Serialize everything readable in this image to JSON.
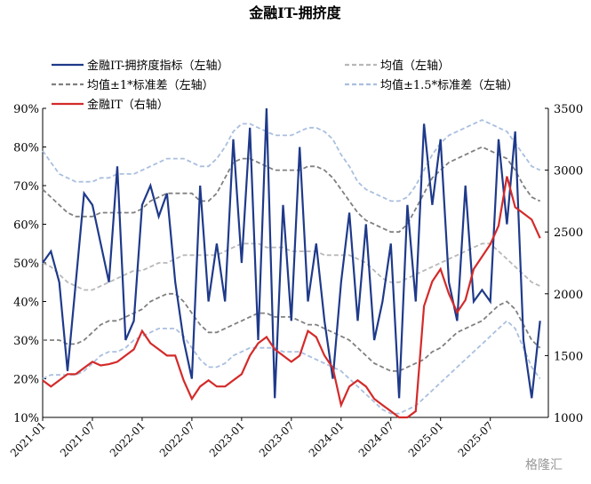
{
  "chart_data": {
    "type": "line",
    "title": "金融IT-拥挤度",
    "watermark": "格隆汇",
    "categories": [
      "2021-01",
      null,
      null,
      null,
      null,
      null,
      "2021-07",
      null,
      null,
      null,
      null,
      null,
      "2022-01",
      null,
      null,
      null,
      null,
      null,
      "2022-07",
      null,
      null,
      null,
      null,
      null,
      "2023-01",
      null,
      null,
      null,
      null,
      null,
      "2023-07",
      null,
      null,
      null,
      null,
      null,
      "2024-01",
      null,
      null,
      null,
      null,
      null,
      "2024-07",
      null,
      null,
      null,
      null,
      null,
      "2025-01",
      null,
      null,
      null,
      null,
      null,
      "2025-07",
      null,
      null,
      null,
      null,
      null,
      null
    ],
    "ylim": [
      10,
      90
    ],
    "yticks": [
      {
        "value": 10,
        "label": "10%"
      },
      {
        "value": 20,
        "label": "20%"
      },
      {
        "value": 30,
        "label": "30%"
      },
      {
        "value": 40,
        "label": "40%"
      },
      {
        "value": 50,
        "label": "50%"
      },
      {
        "value": 60,
        "label": "60%"
      },
      {
        "value": 70,
        "label": "70%"
      },
      {
        "value": 80,
        "label": "80%"
      },
      {
        "value": 90,
        "label": "90%"
      }
    ],
    "y2lim": [
      1000,
      3500
    ],
    "y2ticks": [
      1000,
      1500,
      2000,
      2500,
      3000,
      3500
    ],
    "series": [
      {
        "name": "金融IT-拥挤度指标（左轴）",
        "color": "#1f3a8a",
        "dash": "solid",
        "axis": "y",
        "values": [
          50,
          53,
          45,
          22,
          45,
          68,
          65,
          55,
          45,
          75,
          30,
          35,
          65,
          70,
          62,
          68,
          45,
          30,
          20,
          70,
          40,
          55,
          40,
          82,
          50,
          85,
          30,
          90,
          15,
          65,
          35,
          80,
          40,
          55,
          35,
          20,
          45,
          63,
          35,
          60,
          30,
          40,
          55,
          15,
          65,
          40,
          86,
          65,
          82,
          45,
          35,
          70,
          40,
          43,
          40,
          82,
          60,
          84,
          30,
          15,
          35
        ]
      },
      {
        "name": "均值（左轴）",
        "color": "#b8b8b8",
        "dash": "dashed",
        "axis": "y",
        "values": [
          50,
          49,
          47,
          45,
          44,
          43,
          43,
          44,
          45,
          46,
          47,
          48,
          48,
          49,
          50,
          50,
          51,
          52,
          52,
          52,
          52,
          52,
          53,
          54,
          55,
          55,
          55,
          54,
          54,
          54,
          53,
          53,
          53,
          53,
          52,
          52,
          52,
          52,
          51,
          50,
          48,
          46,
          45,
          45,
          46,
          47,
          48,
          49,
          50,
          51,
          52,
          53,
          54,
          55,
          55,
          53,
          51,
          49,
          47,
          45,
          44
        ]
      },
      {
        "name": "均值±1*标准差（左轴）",
        "color": "#808080",
        "dash": "dashed",
        "axis": "y",
        "upper": [
          69,
          67,
          65,
          63,
          62,
          62,
          62,
          63,
          63,
          63,
          63,
          63,
          64,
          66,
          67,
          68,
          68,
          68,
          68,
          66,
          66,
          68,
          72,
          76,
          77,
          77,
          76,
          75,
          74,
          74,
          74,
          74,
          75,
          75,
          74,
          72,
          69,
          66,
          63,
          61,
          60,
          59,
          58,
          58,
          60,
          64,
          68,
          72,
          74,
          76,
          77,
          78,
          79,
          80,
          79,
          78,
          77,
          74,
          70,
          67,
          66
        ],
        "lower": [
          30,
          30,
          30,
          29,
          29,
          30,
          32,
          34,
          35,
          35,
          36,
          37,
          38,
          40,
          41,
          42,
          42,
          40,
          37,
          34,
          32,
          32,
          33,
          34,
          35,
          36,
          37,
          37,
          36,
          36,
          36,
          35,
          34,
          34,
          33,
          32,
          31,
          30,
          28,
          26,
          24,
          23,
          22,
          22,
          23,
          24,
          25,
          27,
          28,
          30,
          32,
          33,
          34,
          35,
          37,
          39,
          40,
          38,
          34,
          30,
          28
        ]
      },
      {
        "name": "均值±1.5*标准差（左轴）",
        "color": "#aabfdf",
        "dash": "dashed",
        "axis": "y",
        "upper": [
          79,
          76,
          73,
          72,
          71,
          71,
          71,
          72,
          72,
          73,
          73,
          73,
          74,
          75,
          76,
          77,
          77,
          77,
          76,
          75,
          75,
          77,
          80,
          84,
          86,
          86,
          85,
          84,
          83,
          83,
          83,
          84,
          85,
          85,
          84,
          82,
          78,
          75,
          71,
          69,
          68,
          67,
          66,
          66,
          67,
          70,
          74,
          78,
          81,
          83,
          84,
          85,
          86,
          87,
          86,
          85,
          84,
          81,
          78,
          75,
          74
        ],
        "lower": [
          20,
          21,
          21,
          21,
          21,
          22,
          24,
          26,
          27,
          27,
          28,
          30,
          31,
          32,
          33,
          33,
          33,
          31,
          28,
          25,
          23,
          23,
          24,
          26,
          27,
          28,
          28,
          28,
          28,
          27,
          27,
          27,
          26,
          25,
          24,
          23,
          22,
          20,
          18,
          16,
          14,
          12,
          11,
          11,
          12,
          13,
          15,
          17,
          19,
          21,
          23,
          25,
          27,
          29,
          31,
          33,
          35,
          33,
          28,
          23,
          20
        ]
      },
      {
        "name": "金融IT（右轴）",
        "color": "#d42a2a",
        "dash": "solid",
        "axis": "y2",
        "values": [
          1300,
          1250,
          1300,
          1350,
          1350,
          1400,
          1450,
          1420,
          1430,
          1450,
          1500,
          1550,
          1700,
          1600,
          1550,
          1500,
          1500,
          1300,
          1150,
          1250,
          1300,
          1250,
          1250,
          1300,
          1350,
          1500,
          1600,
          1650,
          1550,
          1500,
          1450,
          1500,
          1700,
          1650,
          1500,
          1400,
          1100,
          1250,
          1300,
          1250,
          1150,
          1100,
          1050,
          1000,
          1000,
          1050,
          1900,
          2100,
          2200,
          2000,
          1850,
          1950,
          2200,
          2300,
          2400,
          2550,
          2950,
          2700,
          2650,
          2600,
          2450
        ]
      }
    ]
  }
}
